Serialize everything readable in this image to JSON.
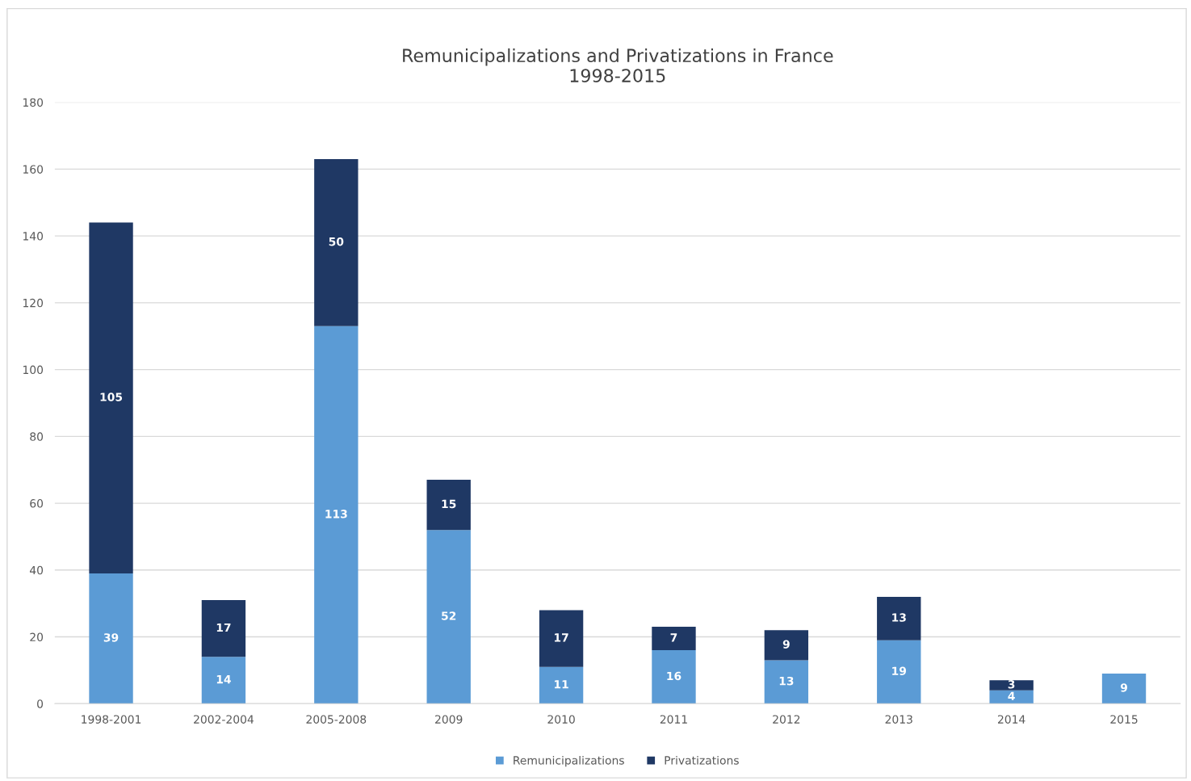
{
  "chart_data": {
    "type": "bar",
    "title": "Remunicipalizations and Privatizations in France\n1998-2015",
    "categories": [
      "1998-2001",
      "2002-2004",
      "2005-2008",
      "2009",
      "2010",
      "2011",
      "2012",
      "2013",
      "2014",
      "2015"
    ],
    "series": [
      {
        "name": "Remunicipalizations",
        "color": "#5b9bd5",
        "values": [
          39,
          14,
          113,
          52,
          11,
          16,
          13,
          19,
          4,
          9
        ]
      },
      {
        "name": "Privatizations",
        "color": "#1f3864",
        "values": [
          105,
          17,
          50,
          15,
          17,
          7,
          9,
          13,
          3,
          null
        ]
      }
    ],
    "stacked": true,
    "data_labels": true,
    "ylim": [
      0,
      180
    ],
    "yticks": [
      0,
      20,
      40,
      60,
      80,
      100,
      120,
      140,
      160,
      180
    ],
    "grid": "y",
    "legend": "bottom"
  }
}
